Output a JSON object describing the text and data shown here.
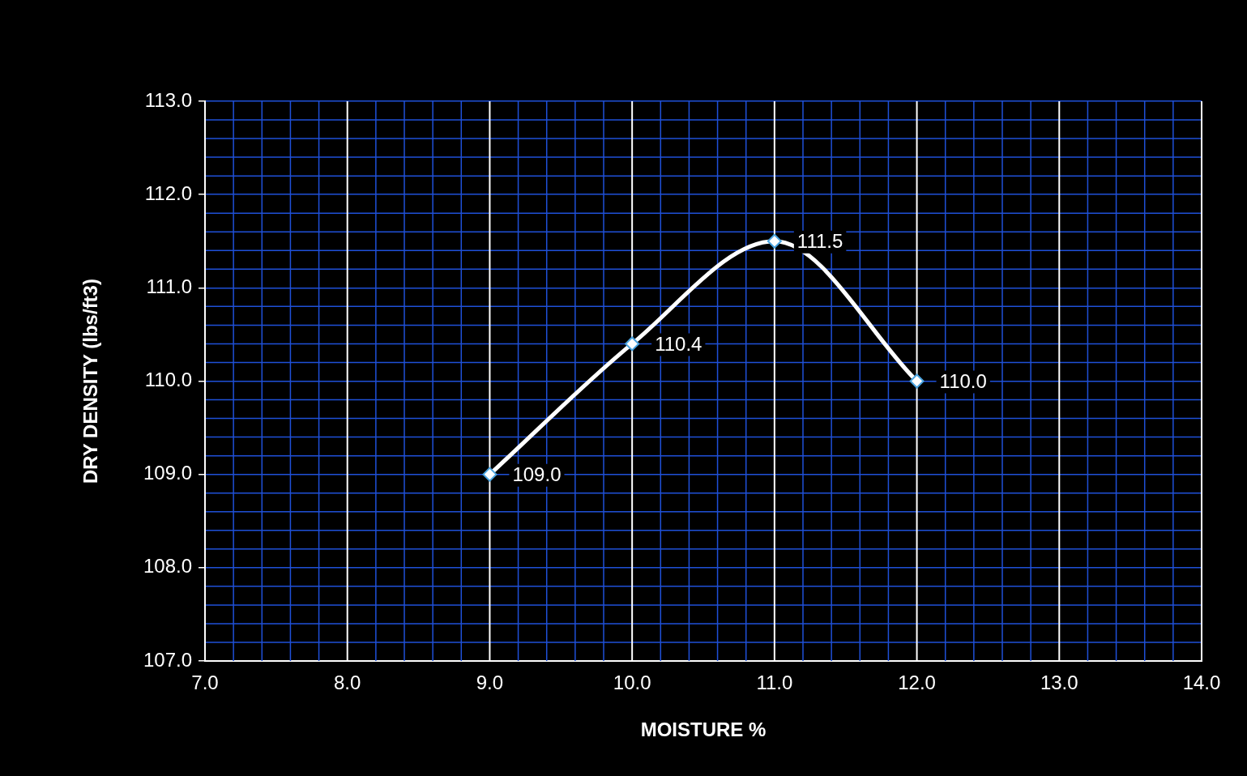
{
  "chart_data": {
    "type": "line",
    "xlabel": "MOISTURE %",
    "ylabel": "DRY DENSITY (lbs/ft3)",
    "x": [
      9.0,
      10.0,
      11.0,
      12.0
    ],
    "series": [
      {
        "color": "#ffffff",
        "values": [
          109.0,
          110.4,
          111.5,
          110.0
        ],
        "value_labels": [
          "109.0",
          "110.4",
          "111.5",
          "110.0"
        ]
      }
    ],
    "xlim": [
      7,
      14
    ],
    "xticks": [
      {
        "value": 7,
        "label": "7.0"
      },
      {
        "value": 8,
        "label": "8.0"
      },
      {
        "value": 9,
        "label": "9.0"
      },
      {
        "value": 10,
        "label": "10.0"
      },
      {
        "value": 11,
        "label": "11.0"
      },
      {
        "value": 12,
        "label": "12.0"
      },
      {
        "value": 13,
        "label": "13.0"
      },
      {
        "value": 14,
        "label": "14.0"
      }
    ],
    "ylim": [
      107,
      113
    ],
    "yticks": [
      {
        "value": 107,
        "label": "107.0"
      },
      {
        "value": 108,
        "label": "108.0"
      },
      {
        "value": 109,
        "label": "109.0"
      },
      {
        "value": 110,
        "label": "110.0"
      },
      {
        "value": 111,
        "label": "111.0"
      },
      {
        "value": 112,
        "label": "112.0"
      },
      {
        "value": 113,
        "label": "113.0"
      }
    ],
    "grid": true,
    "marker": "diamond",
    "line_style": "solid",
    "legend": false
  }
}
